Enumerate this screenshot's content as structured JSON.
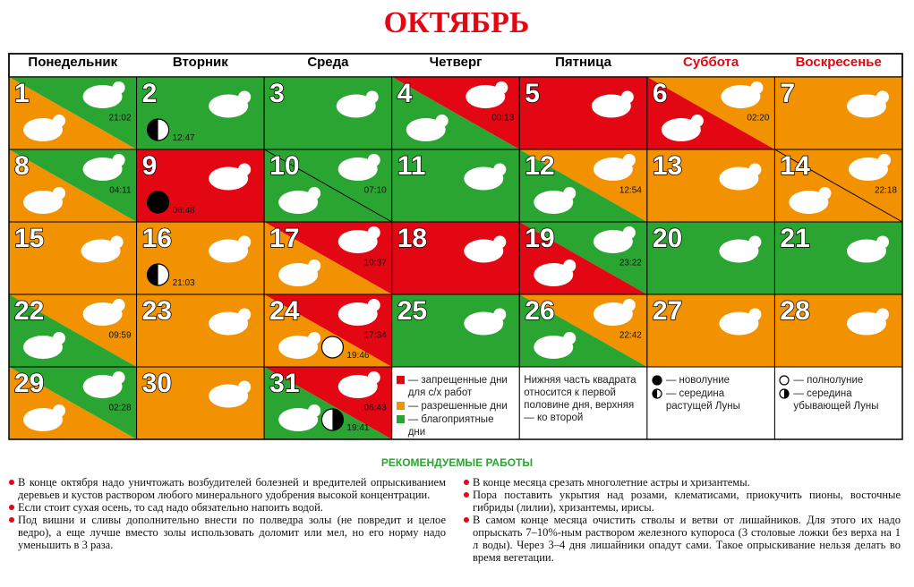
{
  "title": "ОКТЯБРЬ",
  "weekdays": [
    "Понедельник",
    "Вторник",
    "Среда",
    "Четверг",
    "Пятница",
    "Суббота",
    "Воскресенье"
  ],
  "days": [
    {
      "day": 1,
      "top": "#2aa532",
      "bottom": "#f39200",
      "time": "21:02"
    },
    {
      "day": 2,
      "top": "#2aa532",
      "bottom": "#2aa532",
      "moon": {
        "phase": "first",
        "time": "12:47"
      }
    },
    {
      "day": 3,
      "top": "#2aa532",
      "bottom": "#2aa532"
    },
    {
      "day": 4,
      "top": "#e30613",
      "bottom": "#2aa532",
      "time": "00:13"
    },
    {
      "day": 5,
      "top": "#e30613",
      "bottom": "#e30613"
    },
    {
      "day": 6,
      "top": "#f39200",
      "bottom": "#e30613",
      "time": "02:20"
    },
    {
      "day": 7,
      "top": "#f39200",
      "bottom": "#f39200"
    },
    {
      "day": 8,
      "top": "#2aa532",
      "bottom": "#f39200",
      "time": "04:11"
    },
    {
      "day": 9,
      "top": "#e30613",
      "bottom": "#e30613",
      "moon": {
        "phase": "new",
        "time": "06:48"
      }
    },
    {
      "day": 10,
      "top": "#2aa532",
      "bottom": "#2aa532",
      "split": true,
      "time": "07:10"
    },
    {
      "day": 11,
      "top": "#2aa532",
      "bottom": "#2aa532"
    },
    {
      "day": 12,
      "top": "#f39200",
      "bottom": "#2aa532",
      "time": "12:54"
    },
    {
      "day": 13,
      "top": "#f39200",
      "bottom": "#f39200"
    },
    {
      "day": 14,
      "top": "#f39200",
      "bottom": "#f39200",
      "split": true,
      "time": "22:18"
    },
    {
      "day": 15,
      "top": "#f39200",
      "bottom": "#f39200"
    },
    {
      "day": 16,
      "top": "#f39200",
      "bottom": "#f39200",
      "moon": {
        "phase": "first",
        "time": "21:03"
      }
    },
    {
      "day": 17,
      "top": "#e30613",
      "bottom": "#f39200",
      "time": "10:37"
    },
    {
      "day": 18,
      "top": "#e30613",
      "bottom": "#e30613"
    },
    {
      "day": 19,
      "top": "#2aa532",
      "bottom": "#e30613",
      "time": "23:22"
    },
    {
      "day": 20,
      "top": "#2aa532",
      "bottom": "#2aa532"
    },
    {
      "day": 21,
      "top": "#2aa532",
      "bottom": "#2aa532"
    },
    {
      "day": 22,
      "top": "#f39200",
      "bottom": "#2aa532",
      "time": "09:59"
    },
    {
      "day": 23,
      "top": "#f39200",
      "bottom": "#f39200"
    },
    {
      "day": 24,
      "top": "#e30613",
      "bottom": "#f39200",
      "time": "17:34",
      "moon": {
        "phase": "full",
        "time": "19:46"
      }
    },
    {
      "day": 25,
      "top": "#2aa532",
      "bottom": "#2aa532"
    },
    {
      "day": 26,
      "top": "#f39200",
      "bottom": "#2aa532",
      "time": "22:42"
    },
    {
      "day": 27,
      "top": "#f39200",
      "bottom": "#f39200"
    },
    {
      "day": 28,
      "top": "#f39200",
      "bottom": "#f39200"
    },
    {
      "day": 29,
      "top": "#2aa532",
      "bottom": "#f39200",
      "time": "02:28"
    },
    {
      "day": 30,
      "top": "#f39200",
      "bottom": "#f39200"
    },
    {
      "day": 31,
      "top": "#e30613",
      "bottom": "#2aa532",
      "time": "06:43",
      "moon": {
        "phase": "last",
        "time": "19:41"
      }
    }
  ],
  "legend": {
    "colors": [
      {
        "color": "#e30613",
        "text": "— запрещенные дни для с/х работ"
      },
      {
        "color": "#f39200",
        "text": "— разрешенные дни"
      },
      {
        "color": "#2aa532",
        "text": "— благоприятные дни"
      }
    ],
    "note": "Нижняя часть квадрата относится к первой половине дня, верхняя — ко второй",
    "moon_left": [
      {
        "phase": "new",
        "text": "— новолуние"
      },
      {
        "phase": "first",
        "text": "— середина растущей Луны"
      }
    ],
    "moon_right": [
      {
        "phase": "full",
        "text": "— полнолуние"
      },
      {
        "phase": "last",
        "text": "— середина убывающей Луны"
      }
    ]
  },
  "recommendations": {
    "heading": "РЕКОМЕНДУЕМЫЕ РАБОТЫ",
    "left": [
      "В конце октября надо уничтожать возбудителей болезней и вредителей опрыскиванием деревьев и кустов раствором любого минерального удобрения высокой концентрации.",
      "Если стоит сухая осень, то сад надо обязательно напоить водой.",
      "Под вишни и сливы дополнительно внести по полведра золы (не повредит и целое ведро), а еще лучше вместо золы использовать доломит или мел, но его норму надо уменьшить в 3 раза."
    ],
    "right": [
      "В конце месяца срезать многолетние астры и хризантемы.",
      "Пора поставить укрытия над розами, клематисами, приокучить пионы, восточные гибриды (лилии), хризантемы, ирисы.",
      "В самом конце месяца очистить стволы и ветви от лишайников. Для этого их надо опрыскать 7–10%-ным раствором железного купороса (3 столовые ложки без верха на 1 л воды). Через 3–4 дня лишайники опадут сами. Такое опрыскивание нельзя делать во время вегетации."
    ]
  }
}
